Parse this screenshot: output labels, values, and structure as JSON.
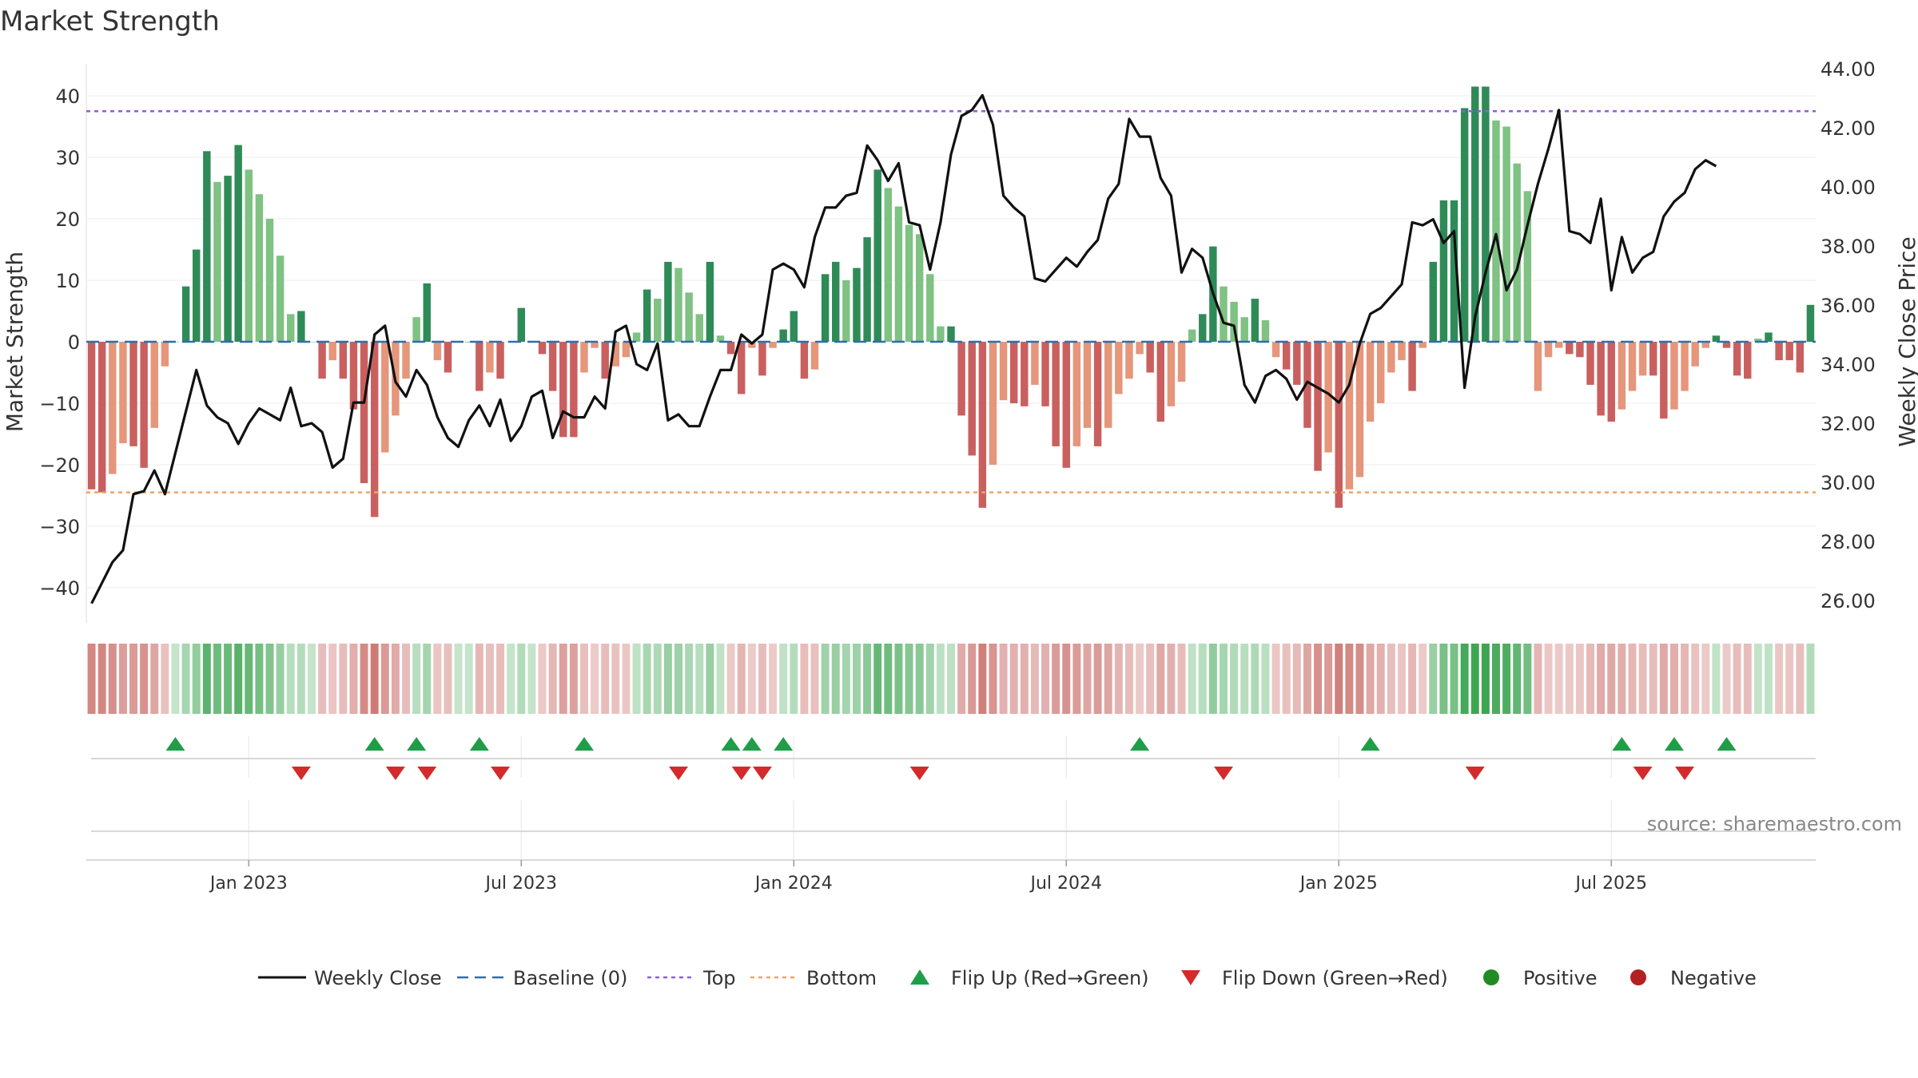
{
  "title": "Market Strength",
  "source_note": "source: sharemaestro.com",
  "colors": {
    "pos_dark": "#2e8b57",
    "pos_light": "#7fc283",
    "neg_dark": "#c9605f",
    "neg_light": "#e5967b",
    "price": "#111111",
    "baseline": "#2f6fa7",
    "top": "#8e5fd1",
    "bottom": "#f0a263",
    "flip_up": "#1f9e48",
    "flip_down": "#d32b2b",
    "positive": "#228b22",
    "negative": "#b22222"
  },
  "chart_data": {
    "type": "bar",
    "title": "Market Strength",
    "x_ticks": [
      "Jan 2023",
      "Jul 2023",
      "Jan 2024",
      "Jul 2024",
      "Jan 2025",
      "Jul 2025"
    ],
    "x_tick_weeks": [
      15,
      41,
      67,
      93,
      119,
      145
    ],
    "y_left": {
      "label": "Market Strength",
      "range": [
        -45,
        45
      ],
      "ticks": [
        40,
        30,
        20,
        10,
        0,
        -10,
        -20,
        -30,
        -40
      ]
    },
    "y_right": {
      "label": "Weekly Close Price",
      "range": [
        25,
        44.5
      ],
      "ticks": [
        "44.00",
        "42.00",
        "40.00",
        "38.00",
        "36.00",
        "34.00",
        "32.00",
        "30.00",
        "28.00",
        "26.00"
      ]
    },
    "top_line": 37.5,
    "bottom_line": -24.5,
    "strength": [
      -24,
      -24.5,
      -21.5,
      -16.5,
      -17,
      -20.5,
      -14,
      -4,
      0,
      9,
      15,
      31,
      26,
      27,
      32,
      28,
      24,
      20,
      14,
      4.5,
      5,
      0,
      -6,
      -3,
      -6,
      -11,
      -23,
      -28.5,
      -18,
      -12,
      -6,
      4,
      9.5,
      -3,
      -5,
      0,
      0,
      -8,
      -5,
      -6,
      0,
      5.5,
      0,
      -2,
      -8,
      -15.5,
      -15.5,
      -5,
      -1,
      -6,
      -4,
      -2.5,
      1.5,
      8.5,
      7,
      13,
      12,
      8,
      4.5,
      13,
      1,
      -2,
      -8.5,
      -1,
      -5.5,
      -1,
      2,
      5,
      -6,
      -4.5,
      11,
      13,
      10,
      12,
      17,
      28,
      25,
      22,
      19,
      17.5,
      11,
      2.5,
      2.5,
      -12,
      -18.5,
      -27,
      -20,
      -9.5,
      -10,
      -10.5,
      -7,
      -10.5,
      -17,
      -20.5,
      -17,
      -14,
      -17,
      -14,
      -8.5,
      -6,
      -2,
      -5,
      -13,
      -10.5,
      -6.5,
      2,
      4.5,
      15.5,
      9,
      6.5,
      4,
      7,
      3.5,
      -2.5,
      -4.5,
      -7,
      -14,
      -21,
      -18,
      -27,
      -24,
      -22,
      -13,
      -10,
      -5,
      -3,
      -8,
      -1,
      13,
      23,
      23,
      38,
      41.5,
      41.5,
      36,
      35,
      29,
      24.5,
      -8,
      -2.5,
      -1,
      -2,
      -2.5,
      -7,
      -12,
      -13,
      -11,
      -8,
      -5.5,
      -5.5,
      -12.5,
      -11,
      -8,
      -4,
      -1,
      1,
      -1,
      -5.5,
      -6,
      0.5,
      1.5,
      -3,
      -3,
      -5,
      6
    ],
    "price": [
      25.9,
      26.6,
      27.3,
      27.7,
      29.6,
      29.7,
      30.4,
      29.6,
      31.0,
      32.4,
      33.8,
      32.6,
      32.2,
      32.0,
      31.3,
      32.0,
      32.5,
      32.3,
      32.1,
      33.2,
      31.9,
      32.0,
      31.7,
      30.5,
      30.8,
      32.7,
      32.7,
      35.0,
      35.3,
      33.4,
      32.9,
      33.8,
      33.3,
      32.2,
      31.5,
      31.2,
      32.1,
      32.6,
      31.9,
      32.8,
      31.4,
      31.9,
      32.9,
      33.1,
      31.5,
      32.4,
      32.2,
      32.2,
      32.9,
      32.5,
      35.1,
      35.3,
      34.0,
      33.8,
      34.7,
      32.1,
      32.3,
      31.9,
      31.9,
      32.9,
      33.8,
      33.8,
      35.0,
      34.7,
      35.0,
      37.2,
      37.4,
      37.2,
      36.6,
      38.3,
      39.3,
      39.3,
      39.7,
      39.8,
      41.4,
      40.9,
      40.2,
      40.8,
      38.8,
      38.7,
      37.2,
      38.8,
      41.1,
      42.4,
      42.6,
      43.1,
      42.1,
      39.7,
      39.3,
      39.0,
      36.9,
      36.8,
      37.2,
      37.6,
      37.3,
      37.8,
      38.2,
      39.6,
      40.1,
      42.3,
      41.7,
      41.7,
      40.3,
      39.7,
      37.1,
      37.9,
      37.6,
      36.4,
      35.4,
      35.3,
      33.3,
      32.7,
      33.6,
      33.8,
      33.5,
      32.8,
      33.4,
      33.2,
      33.0,
      32.7,
      33.3,
      34.7,
      35.7,
      35.9,
      36.3,
      36.7,
      38.8,
      38.7,
      38.9,
      38.1,
      38.5,
      33.2,
      35.6,
      37.1,
      38.4,
      36.5,
      37.2,
      38.7,
      40.1,
      41.3,
      42.6,
      38.5,
      38.4,
      38.1,
      39.6,
      36.5,
      38.3,
      37.1,
      37.6,
      37.8,
      39.0,
      39.5,
      39.8,
      40.6,
      40.9,
      40.7
    ],
    "baseline": 0,
    "flip_up_weeks": [
      8,
      27,
      31,
      37,
      47,
      61,
      63,
      66,
      100,
      122,
      146,
      151,
      156
    ],
    "flip_down_weeks": [
      20,
      29,
      32,
      39,
      56,
      62,
      64,
      79,
      108,
      132,
      148,
      152
    ]
  },
  "legend": {
    "weekly_close": "Weekly Close",
    "baseline": "Baseline (0)",
    "top": "Top",
    "bottom": "Bottom",
    "flip_up": "Flip Up (Red→Green)",
    "flip_down": "Flip Down (Green→Red)",
    "positive": "Positive",
    "negative": "Negative"
  }
}
